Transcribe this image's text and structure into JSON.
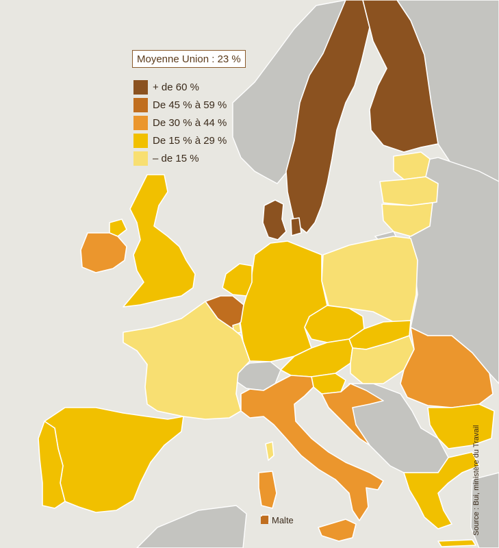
{
  "legend": {
    "title": "Moyenne Union : 23 %",
    "items": [
      {
        "label": "+ de 60 %",
        "color": "#8b5220"
      },
      {
        "label": "De 45 % à 59 %",
        "color": "#c06e1f"
      },
      {
        "label": "De 30 % à 44 %",
        "color": "#eb962d"
      },
      {
        "label": "De 15 % à 29 %",
        "color": "#f1c000"
      },
      {
        "label": "– de 15 %",
        "color": "#f8df72"
      }
    ]
  },
  "malte": {
    "label": "Malte",
    "color": "#c06e1f"
  },
  "source": "Source : Bui, ministère du Travail",
  "colors": {
    "non_eu": "#c4c4c0",
    "sea": "#e8e7e1",
    "border": "#ffffff"
  },
  "countries": [
    {
      "name": "Suède",
      "class": "+ de 60 %"
    },
    {
      "name": "Finlande",
      "class": "+ de 60 %"
    },
    {
      "name": "Danemark",
      "class": "+ de 60 %"
    },
    {
      "name": "Belgique",
      "class": "De 45 % à 59 %"
    },
    {
      "name": "Irlande",
      "class": "De 30 % à 44 %"
    },
    {
      "name": "Italie",
      "class": "De 30 % à 44 %"
    },
    {
      "name": "Roumanie",
      "class": "De 30 % à 44 %"
    },
    {
      "name": "Croatie",
      "class": "De 30 % à 44 %"
    },
    {
      "name": "Royaume-Uni",
      "class": "De 15 % à 29 %"
    },
    {
      "name": "Allemagne",
      "class": "De 15 % à 29 %"
    },
    {
      "name": "Pays-Bas",
      "class": "De 15 % à 29 %"
    },
    {
      "name": "Espagne",
      "class": "De 15 % à 29 %"
    },
    {
      "name": "Portugal",
      "class": "De 15 % à 29 %"
    },
    {
      "name": "Autriche",
      "class": "De 15 % à 29 %"
    },
    {
      "name": "République tchèque",
      "class": "De 15 % à 29 %"
    },
    {
      "name": "Slovaquie",
      "class": "De 15 % à 29 %"
    },
    {
      "name": "Slovénie",
      "class": "De 15 % à 29 %"
    },
    {
      "name": "Bulgarie",
      "class": "De 15 % à 29 %"
    },
    {
      "name": "Grèce",
      "class": "De 15 % à 29 %"
    },
    {
      "name": "France",
      "class": "– de 15 %"
    },
    {
      "name": "Pologne",
      "class": "– de 15 %"
    },
    {
      "name": "Hongrie",
      "class": "– de 15 %"
    },
    {
      "name": "Estonie",
      "class": "– de 15 %"
    },
    {
      "name": "Lettonie",
      "class": "– de 15 %"
    },
    {
      "name": "Lituanie",
      "class": "– de 15 %"
    },
    {
      "name": "Luxembourg",
      "class": "– de 15 %"
    }
  ]
}
